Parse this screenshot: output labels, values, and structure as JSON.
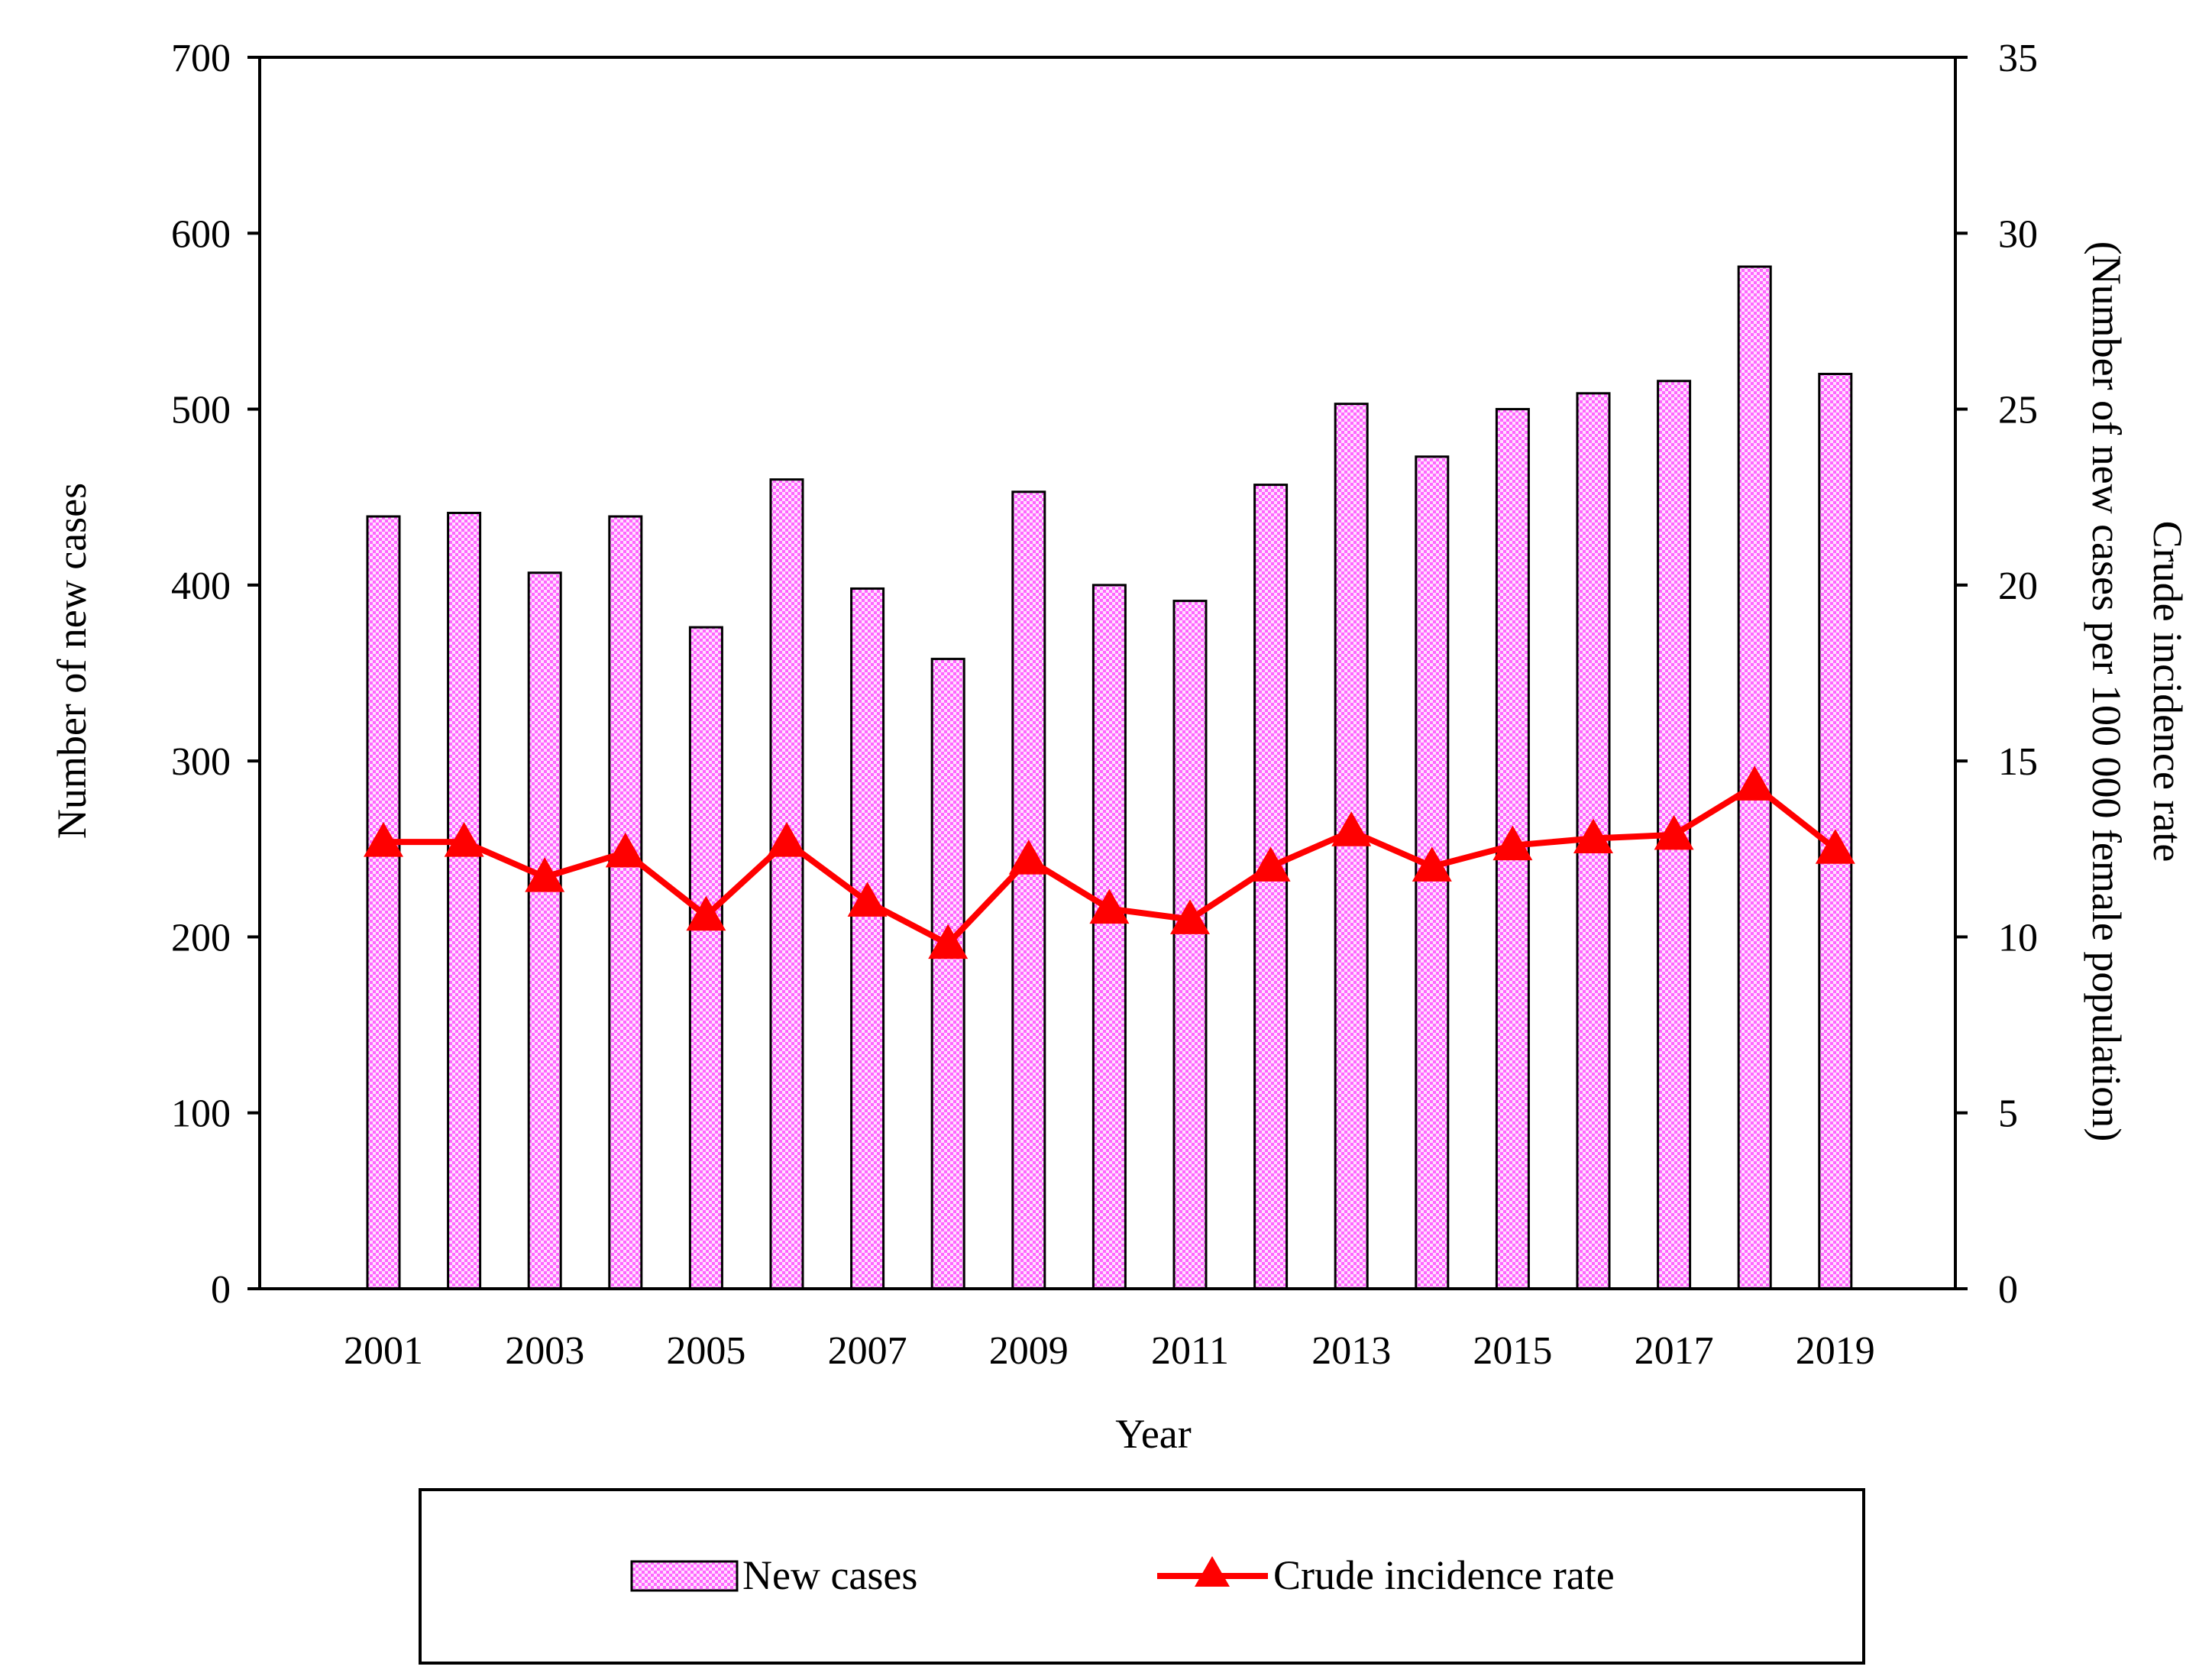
{
  "chart_data": {
    "type": "bar",
    "categories": [
      "2001",
      "2002",
      "2003",
      "2004",
      "2005",
      "2006",
      "2007",
      "2008",
      "2009",
      "2010",
      "2011",
      "2012",
      "2013",
      "2014",
      "2015",
      "2016",
      "2017",
      "2018",
      "2019"
    ],
    "x_tick_labels": [
      "2001",
      "2003",
      "2005",
      "2007",
      "2009",
      "2011",
      "2013",
      "2015",
      "2017",
      "2019"
    ],
    "series": [
      {
        "name": "New cases",
        "type": "bar",
        "axis": "left",
        "color": "#ff66ff",
        "values": [
          439,
          441,
          407,
          439,
          376,
          460,
          398,
          358,
          453,
          400,
          391,
          457,
          503,
          473,
          500,
          509,
          516,
          581,
          520
        ]
      },
      {
        "name": "Crude incidence rate",
        "type": "line",
        "axis": "right",
        "marker": "triangle",
        "color": "#ff0000",
        "values": [
          12.7,
          12.7,
          11.7,
          12.4,
          10.6,
          12.7,
          11.0,
          9.8,
          12.2,
          10.8,
          10.5,
          12.0,
          13.0,
          12.0,
          12.6,
          12.8,
          12.9,
          14.3,
          12.5
        ]
      }
    ],
    "xlabel": "Year",
    "ylabel_left": "Number of new cases",
    "ylabel_right_line1": "Crude incidence rate",
    "ylabel_right_line2": "(Number of new cases per 100 000 female population)",
    "ylim_left": [
      0,
      700
    ],
    "yticks_left": [
      0,
      100,
      200,
      300,
      400,
      500,
      600,
      700
    ],
    "ylim_right": [
      0,
      35
    ],
    "yticks_right": [
      0,
      5,
      10,
      15,
      20,
      25,
      30,
      35
    ],
    "grid": false,
    "legend_position": "bottom"
  }
}
